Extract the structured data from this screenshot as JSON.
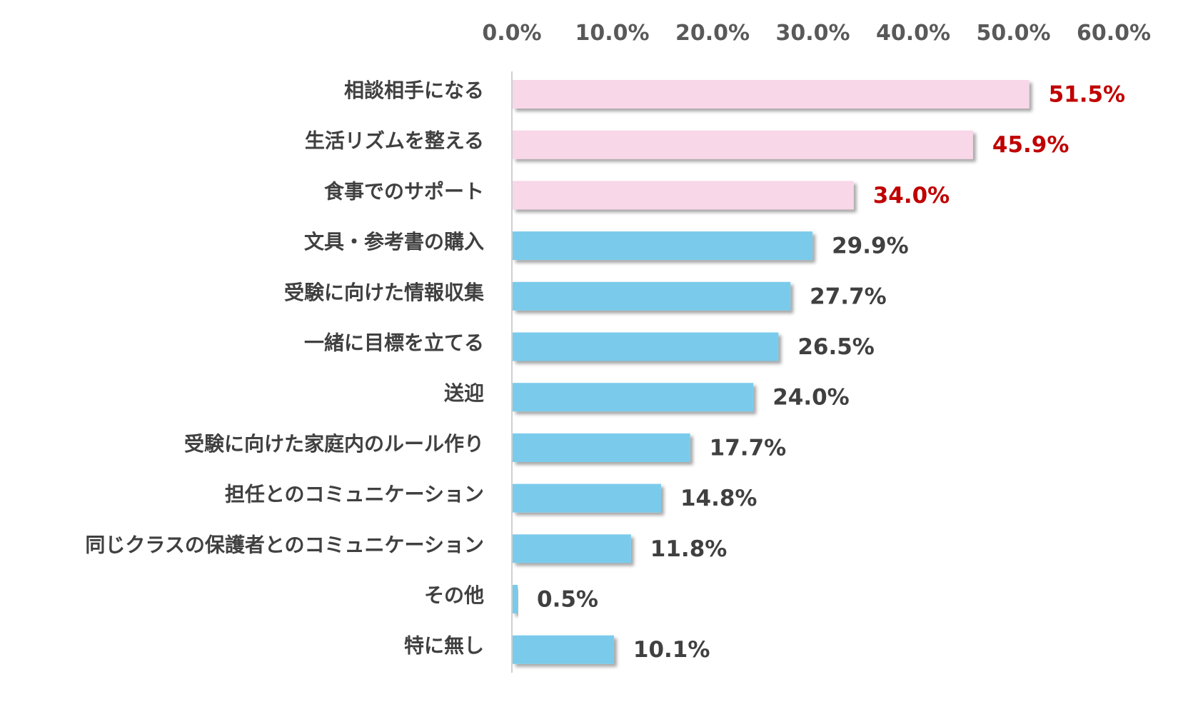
{
  "chart_data": {
    "type": "bar",
    "orientation": "horizontal",
    "x_ticks": [
      "0.0%",
      "10.0%",
      "20.0%",
      "30.0%",
      "40.0%",
      "50.0%",
      "60.0%"
    ],
    "xlim": [
      0,
      60
    ],
    "categories": [
      "相談相手になる",
      "生活リズムを整える",
      "食事でのサポート",
      "文具・参考書の購入",
      "受験に向けた情報収集",
      "一緒に目標を立てる",
      "送迎",
      "受験に向けた家庭内のルール作り",
      "担任とのコミュニケーション",
      "同じクラスの保護者とのコミュニケーション",
      "その他",
      "特に無し"
    ],
    "values": [
      51.5,
      45.9,
      34.0,
      29.9,
      27.7,
      26.5,
      24.0,
      17.7,
      14.8,
      11.8,
      0.5,
      10.1
    ],
    "value_labels": [
      "51.5%",
      "45.9%",
      "34.0%",
      "29.9%",
      "27.7%",
      "26.5%",
      "24.0%",
      "17.7%",
      "14.8%",
      "11.8%",
      "0.5%",
      "10.1%"
    ],
    "highlight_count": 3,
    "colors": {
      "highlight_bar": "#F8D7E8",
      "normal_bar": "#7ACBEB",
      "highlight_label": "#C00000",
      "normal_label": "#404040",
      "axis_text": "#595959",
      "axis_line": "#D0D0D0"
    }
  }
}
